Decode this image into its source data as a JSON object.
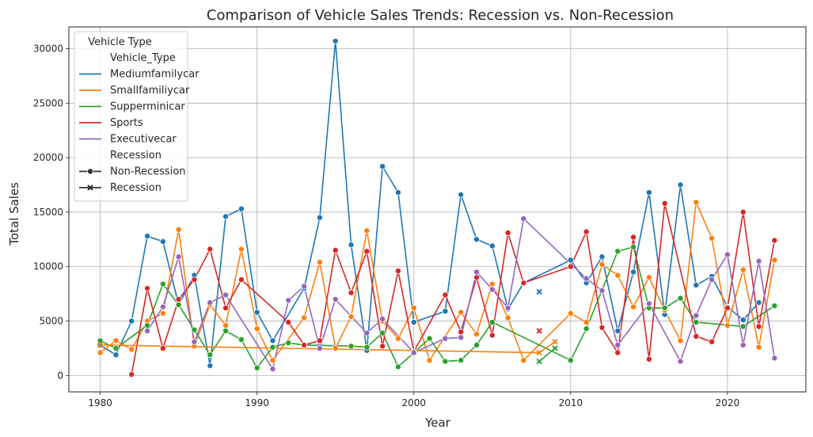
{
  "chart_data": {
    "type": "line",
    "title": "Comparison of Vehicle Sales Trends: Recession vs. Non-Recession",
    "xlabel": "Year",
    "ylabel": "Total Sales",
    "xlim": [
      1978,
      2025
    ],
    "ylim": [
      -1500,
      32000
    ],
    "xticks": [
      1980,
      1990,
      2000,
      2010,
      2020
    ],
    "yticks": [
      0,
      5000,
      10000,
      15000,
      20000,
      25000,
      30000
    ],
    "grid": true,
    "legend": {
      "placement": "top-left",
      "title": "Vehicle Type",
      "hue_header": "Vehicle_Type",
      "style_header": "Recession",
      "style_entries": [
        {
          "label": "Non-Recession",
          "marker": "circle"
        },
        {
          "label": "Recession",
          "marker": "x"
        }
      ]
    },
    "series": [
      {
        "name": "Mediumfamilycar",
        "color": "#1f77b4",
        "x": [
          1980,
          1981,
          1982,
          1983,
          1984,
          1985,
          1986,
          1987,
          1988,
          1989,
          1990,
          1991,
          1993,
          1994,
          1995,
          1996,
          1997,
          1998,
          1999,
          2000,
          2002,
          2003,
          2004,
          2005,
          2006,
          2007,
          2010,
          2011,
          2012,
          2013,
          2014,
          2015,
          2016,
          2017,
          2018,
          2019,
          2020,
          2021,
          2022
        ],
        "y": [
          2800,
          1900,
          5000,
          12800,
          12300,
          6500,
          9200,
          900,
          14600,
          15300,
          5800,
          3200,
          8000,
          14500,
          30700,
          12000,
          2300,
          19200,
          16800,
          4900,
          5900,
          16600,
          12500,
          11900,
          6100,
          8500,
          10600,
          8500,
          10900,
          4100,
          9500,
          16800,
          5600,
          17500,
          8300,
          9100,
          6300,
          5100,
          6700
        ],
        "recession": [
          false,
          false,
          false,
          false,
          false,
          false,
          false,
          false,
          false,
          false,
          false,
          false,
          false,
          false,
          false,
          false,
          false,
          false,
          false,
          false,
          false,
          false,
          false,
          false,
          false,
          false,
          false,
          false,
          false,
          false,
          false,
          false,
          false,
          false,
          false,
          false,
          false,
          false,
          false
        ]
      },
      {
        "name": "Smallfamiliycar",
        "color": "#ff7f0e",
        "x": [
          1980,
          1981,
          1982,
          1983,
          1984,
          1985,
          1986,
          1987,
          1988,
          1989,
          1990,
          1991,
          1993,
          1994,
          1995,
          1996,
          1997,
          1998,
          1999,
          2000,
          2001,
          2003,
          2004,
          2005,
          2006,
          2007,
          2010,
          2011,
          2012,
          2013,
          2014,
          2015,
          2016,
          2017,
          2018,
          2019,
          2020,
          2021,
          2022,
          2023
        ],
        "y": [
          2100,
          3200,
          2400,
          5000,
          5700,
          13400,
          2700,
          6500,
          4600,
          11600,
          4300,
          1400,
          5300,
          10400,
          2500,
          5400,
          13300,
          5000,
          3400,
          6200,
          1400,
          5800,
          3800,
          8400,
          5300,
          1400,
          5700,
          4900,
          10200,
          9200,
          6300,
          9000,
          6000,
          3200,
          15900,
          12600,
          4600,
          9700,
          2600,
          10600
        ],
        "recession": [
          false,
          false,
          false,
          false,
          false,
          false,
          false,
          false,
          false,
          false,
          false,
          false,
          false,
          false,
          false,
          false,
          false,
          false,
          false,
          false,
          false,
          false,
          false,
          false,
          false,
          false,
          false,
          false,
          false,
          false,
          false,
          false,
          false,
          false,
          false,
          false,
          false,
          false,
          false,
          false
        ]
      },
      {
        "name": "Supperminicar",
        "color": "#2ca02c",
        "x": [
          1980,
          1981,
          1983,
          1984,
          1985,
          1986,
          1987,
          1988,
          1989,
          1990,
          1991,
          1992,
          1993,
          1996,
          1997,
          1998,
          1999,
          2001,
          2002,
          2003,
          2004,
          2005,
          2010,
          2011,
          2013,
          2014,
          2015,
          2016,
          2017,
          2018,
          2021,
          2023
        ],
        "y": [
          3200,
          2500,
          4600,
          8400,
          6500,
          4200,
          1900,
          4100,
          3300,
          700,
          2600,
          3000,
          2800,
          2700,
          2600,
          3900,
          800,
          3400,
          1300,
          1400,
          2800,
          4900,
          1400,
          4300,
          11400,
          11800,
          6200,
          6200,
          7100,
          4900,
          4500,
          6400
        ],
        "recession": [
          false,
          false,
          false,
          false,
          false,
          false,
          false,
          false,
          false,
          false,
          false,
          false,
          false,
          false,
          false,
          false,
          false,
          false,
          false,
          false,
          false,
          false,
          false,
          false,
          false,
          false,
          false,
          false,
          false,
          false,
          false,
          false
        ]
      },
      {
        "name": "Sports",
        "color": "#d62728",
        "x": [
          1982,
          1983,
          1984,
          1985,
          1986,
          1987,
          1988,
          1989,
          1992,
          1993,
          1994,
          1995,
          1996,
          1997,
          1998,
          1999,
          2000,
          2002,
          2003,
          2004,
          2005,
          2006,
          2007,
          2010,
          2011,
          2012,
          2013,
          2014,
          2015,
          2016,
          2018,
          2019,
          2020,
          2021,
          2022,
          2023
        ],
        "y": [
          100,
          8000,
          2500,
          7000,
          8800,
          11600,
          6200,
          8800,
          4900,
          2800,
          3200,
          11500,
          7600,
          11400,
          2700,
          9600,
          2200,
          7400,
          4000,
          9000,
          3700,
          13100,
          8500,
          10000,
          13200,
          4400,
          2100,
          12700,
          1500,
          15800,
          3600,
          3100,
          6200,
          15000,
          4500,
          12400
        ],
        "recession": [
          false,
          false,
          false,
          false,
          false,
          false,
          false,
          false,
          false,
          false,
          false,
          false,
          false,
          false,
          false,
          false,
          false,
          false,
          false,
          false,
          false,
          false,
          false,
          false,
          false,
          false,
          false,
          false,
          false,
          false,
          false,
          false,
          false,
          false,
          false,
          false
        ]
      },
      {
        "name": "Executivecar",
        "color": "#9467bd",
        "x": [
          1983,
          1984,
          1985,
          1986,
          1987,
          1988,
          1991,
          1992,
          1993,
          1994,
          1995,
          1997,
          1998,
          2000,
          2002,
          2003,
          2004,
          2005,
          2006,
          2007,
          2011,
          2012,
          2013,
          2015,
          2017,
          2018,
          2019,
          2020,
          2021,
          2022,
          2023
        ],
        "y": [
          4100,
          6300,
          10900,
          3100,
          6700,
          7400,
          600,
          6900,
          8200,
          2500,
          7000,
          3900,
          5200,
          2100,
          3400,
          3500,
          9500,
          7900,
          6200,
          14400,
          8900,
          7800,
          2800,
          6600,
          1300,
          5500,
          8800,
          11100,
          2800,
          10500,
          1600
        ],
        "recession": [
          false,
          false,
          false,
          false,
          false,
          false,
          false,
          false,
          false,
          false,
          false,
          false,
          false,
          false,
          false,
          false,
          false,
          false,
          false,
          false,
          false,
          false,
          false,
          false,
          false,
          false,
          false,
          false,
          false,
          false,
          false
        ]
      },
      {
        "name": "Mediumfamilycar",
        "color": "#1f77b4",
        "x": [
          2008
        ],
        "y": [
          7700
        ],
        "recession": [
          true
        ]
      },
      {
        "name": "Smallfamiliycar",
        "color": "#ff7f0e",
        "x": [
          1980,
          2008,
          2009
        ],
        "y": [
          2800,
          2100,
          3100
        ],
        "recession": [
          true,
          true,
          true
        ]
      },
      {
        "name": "Supperminicar",
        "color": "#2ca02c",
        "x": [
          2008,
          2009
        ],
        "y": [
          1300,
          2500
        ],
        "recession": [
          true,
          true
        ]
      },
      {
        "name": "Sports",
        "color": "#d62728",
        "x": [
          2008
        ],
        "y": [
          4100
        ],
        "recession": [
          true
        ]
      }
    ]
  }
}
